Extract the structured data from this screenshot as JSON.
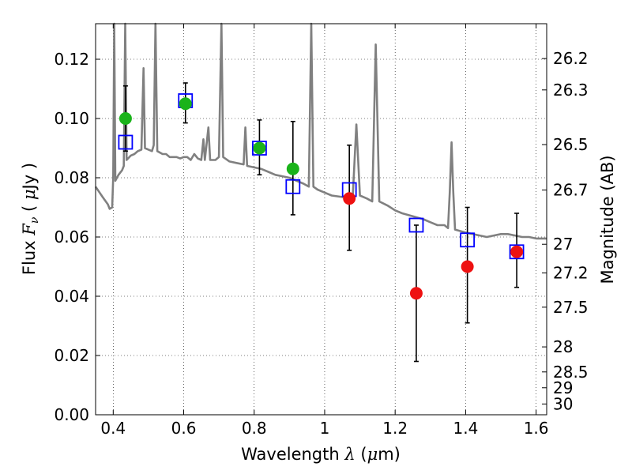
{
  "chart_data": {
    "type": "scatter",
    "title": "",
    "xlabel": {
      "text": "Wavelength",
      "symbol": "λ",
      "unit_open": " (",
      "unit_mu": "μ",
      "unit_rest": "m)"
    },
    "ylabel": {
      "text": "Flux",
      "symbol": "F",
      "subscript": "ν",
      "unit_open": " ( ",
      "unit_mu": "μ",
      "unit_rest": "Jy )"
    },
    "y2label": "Magnitude (AB)",
    "xlim": [
      0.35,
      1.63
    ],
    "ylim": [
      0.0,
      0.132
    ],
    "grid": true,
    "x_ticks": [
      {
        "v": 0.4,
        "label": "0.4"
      },
      {
        "v": 0.6,
        "label": "0.6"
      },
      {
        "v": 0.8,
        "label": "0.8"
      },
      {
        "v": 1.0,
        "label": "1"
      },
      {
        "v": 1.2,
        "label": "1.2"
      },
      {
        "v": 1.4,
        "label": "1.4"
      },
      {
        "v": 1.6,
        "label": "1.6"
      }
    ],
    "y_ticks": [
      {
        "v": 0.0,
        "label": "0.00"
      },
      {
        "v": 0.02,
        "label": "0.02"
      },
      {
        "v": 0.04,
        "label": "0.04"
      },
      {
        "v": 0.06,
        "label": "0.06"
      },
      {
        "v": 0.08,
        "label": "0.08"
      },
      {
        "v": 0.1,
        "label": "0.10"
      },
      {
        "v": 0.12,
        "label": "0.12"
      }
    ],
    "y2_ticks": [
      {
        "mag": 26.2,
        "label": "26.2"
      },
      {
        "mag": 26.3,
        "label": "26.3"
      },
      {
        "mag": 26.5,
        "label": "26.5"
      },
      {
        "mag": 26.7,
        "label": "26.7"
      },
      {
        "mag": 27.0,
        "label": "27"
      },
      {
        "mag": 27.2,
        "label": "27.2"
      },
      {
        "mag": 27.5,
        "label": "27.5"
      },
      {
        "mag": 28.0,
        "label": "28"
      },
      {
        "mag": 28.5,
        "label": "28.5"
      },
      {
        "mag": 29.0,
        "label": "29"
      },
      {
        "mag": 30.0,
        "label": "30"
      }
    ],
    "series": [
      {
        "kind": "model_spectrum",
        "color": "#808080",
        "points": [
          [
            0.35,
            0.077
          ],
          [
            0.37,
            0.0735
          ],
          [
            0.385,
            0.071
          ],
          [
            0.39,
            0.0695
          ],
          [
            0.397,
            0.07
          ],
          [
            0.4,
            0.08
          ],
          [
            0.403,
            0.132
          ],
          [
            0.406,
            0.079
          ],
          [
            0.415,
            0.081
          ],
          [
            0.425,
            0.0825
          ],
          [
            0.43,
            0.084
          ],
          [
            0.434,
            0.132
          ],
          [
            0.438,
            0.086
          ],
          [
            0.45,
            0.0875
          ],
          [
            0.46,
            0.088
          ],
          [
            0.47,
            0.089
          ],
          [
            0.48,
            0.0895
          ],
          [
            0.486,
            0.117
          ],
          [
            0.49,
            0.09
          ],
          [
            0.5,
            0.0895
          ],
          [
            0.51,
            0.089
          ],
          [
            0.515,
            0.091
          ],
          [
            0.52,
            0.132
          ],
          [
            0.525,
            0.089
          ],
          [
            0.54,
            0.088
          ],
          [
            0.55,
            0.088
          ],
          [
            0.56,
            0.087
          ],
          [
            0.57,
            0.087
          ],
          [
            0.58,
            0.087
          ],
          [
            0.59,
            0.0865
          ],
          [
            0.6,
            0.087
          ],
          [
            0.61,
            0.087
          ],
          [
            0.62,
            0.086
          ],
          [
            0.63,
            0.088
          ],
          [
            0.64,
            0.0865
          ],
          [
            0.65,
            0.086
          ],
          [
            0.656,
            0.093
          ],
          [
            0.66,
            0.086
          ],
          [
            0.67,
            0.097
          ],
          [
            0.675,
            0.086
          ],
          [
            0.69,
            0.086
          ],
          [
            0.7,
            0.087
          ],
          [
            0.707,
            0.132
          ],
          [
            0.712,
            0.087
          ],
          [
            0.73,
            0.0855
          ],
          [
            0.75,
            0.085
          ],
          [
            0.77,
            0.0845
          ],
          [
            0.775,
            0.097
          ],
          [
            0.78,
            0.084
          ],
          [
            0.8,
            0.0835
          ],
          [
            0.82,
            0.083
          ],
          [
            0.84,
            0.082
          ],
          [
            0.86,
            0.081
          ],
          [
            0.88,
            0.0805
          ],
          [
            0.9,
            0.08
          ],
          [
            0.92,
            0.079
          ],
          [
            0.94,
            0.078
          ],
          [
            0.955,
            0.077
          ],
          [
            0.962,
            0.132
          ],
          [
            0.968,
            0.077
          ],
          [
            0.98,
            0.076
          ],
          [
            1.0,
            0.075
          ],
          [
            1.02,
            0.074
          ],
          [
            1.05,
            0.0735
          ],
          [
            1.07,
            0.073
          ],
          [
            1.08,
            0.074
          ],
          [
            1.09,
            0.098
          ],
          [
            1.1,
            0.074
          ],
          [
            1.12,
            0.073
          ],
          [
            1.135,
            0.072
          ],
          [
            1.145,
            0.125
          ],
          [
            1.155,
            0.072
          ],
          [
            1.18,
            0.0705
          ],
          [
            1.2,
            0.069
          ],
          [
            1.22,
            0.068
          ],
          [
            1.25,
            0.067
          ],
          [
            1.28,
            0.066
          ],
          [
            1.3,
            0.065
          ],
          [
            1.32,
            0.064
          ],
          [
            1.34,
            0.064
          ],
          [
            1.35,
            0.063
          ],
          [
            1.355,
            0.075
          ],
          [
            1.36,
            0.092
          ],
          [
            1.365,
            0.075
          ],
          [
            1.37,
            0.0625
          ],
          [
            1.4,
            0.0615
          ],
          [
            1.42,
            0.061
          ],
          [
            1.44,
            0.0605
          ],
          [
            1.46,
            0.06
          ],
          [
            1.48,
            0.0605
          ],
          [
            1.5,
            0.061
          ],
          [
            1.52,
            0.061
          ],
          [
            1.54,
            0.0605
          ],
          [
            1.56,
            0.06
          ],
          [
            1.58,
            0.06
          ],
          [
            1.6,
            0.0595
          ],
          [
            1.63,
            0.0595
          ]
        ]
      },
      {
        "kind": "model_photometry",
        "color": "#0000ff",
        "points": [
          [
            0.435,
            0.092
          ],
          [
            0.605,
            0.106
          ],
          [
            0.815,
            0.09
          ],
          [
            0.91,
            0.077
          ],
          [
            1.07,
            0.076
          ],
          [
            1.26,
            0.064
          ],
          [
            1.405,
            0.059
          ],
          [
            1.545,
            0.055
          ]
        ]
      },
      {
        "kind": "error_bars",
        "color": "#000000",
        "points": [
          {
            "x": 0.435,
            "lo": 0.089,
            "hi": 0.111
          },
          {
            "x": 0.605,
            "lo": 0.0985,
            "hi": 0.112
          },
          {
            "x": 0.815,
            "lo": 0.081,
            "hi": 0.0995
          },
          {
            "x": 0.91,
            "lo": 0.0675,
            "hi": 0.099
          },
          {
            "x": 1.07,
            "lo": 0.0555,
            "hi": 0.091
          },
          {
            "x": 1.26,
            "lo": 0.018,
            "hi": 0.064
          },
          {
            "x": 1.405,
            "lo": 0.031,
            "hi": 0.07
          },
          {
            "x": 1.545,
            "lo": 0.043,
            "hi": 0.068
          }
        ]
      },
      {
        "kind": "observed_optical",
        "color": "#1ab31a",
        "points": [
          [
            0.435,
            0.1
          ],
          [
            0.605,
            0.105
          ],
          [
            0.815,
            0.09
          ],
          [
            0.91,
            0.083
          ]
        ]
      },
      {
        "kind": "observed_nir",
        "color": "#ee1111",
        "points": [
          [
            1.07,
            0.073
          ],
          [
            1.26,
            0.041
          ],
          [
            1.405,
            0.05
          ],
          [
            1.545,
            0.055
          ]
        ]
      }
    ]
  }
}
